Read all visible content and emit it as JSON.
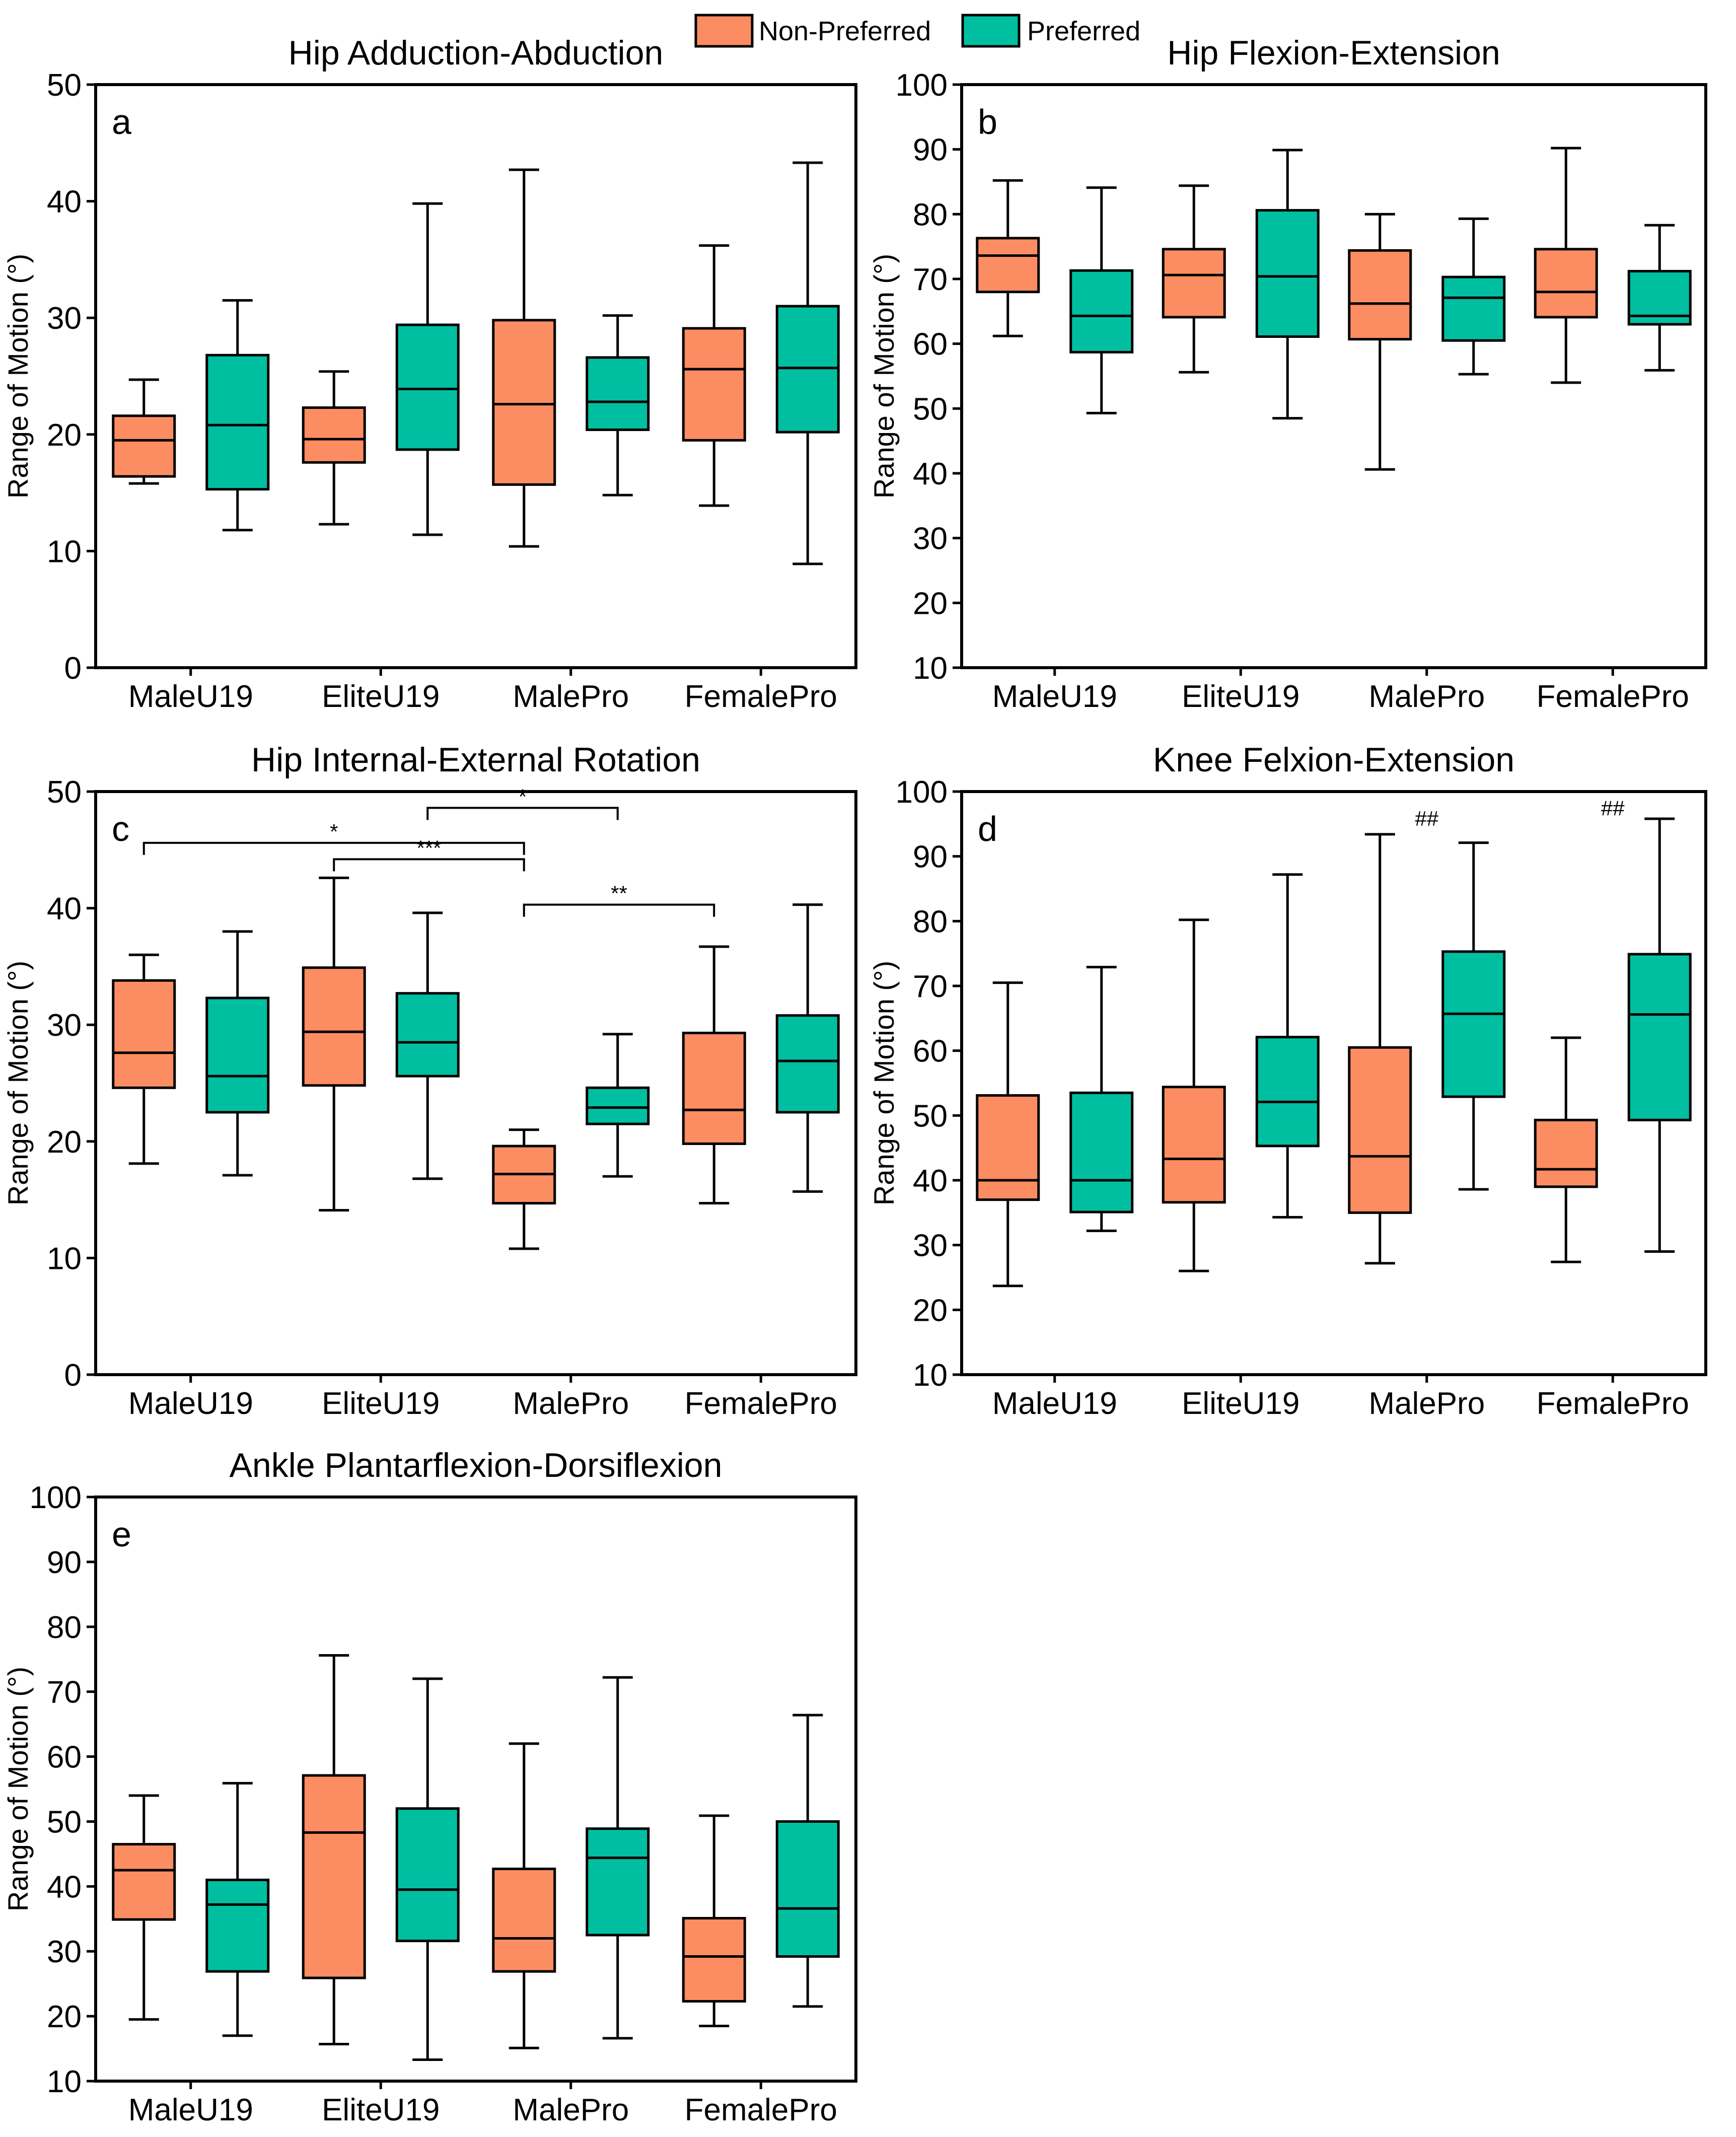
{
  "legend": {
    "items": [
      {
        "label": "Non-Preferred",
        "color": "#FC8D62"
      },
      {
        "label": "Preferred",
        "color": "#00BFA1"
      }
    ]
  },
  "chart_data": [
    {
      "type": "box",
      "panel": "a",
      "title": "Hip Adduction-Abduction",
      "ylabel": "Range of Motion (°)",
      "ylim": [
        0,
        50
      ],
      "yticks": [
        0,
        10,
        20,
        30,
        40,
        50
      ],
      "categories": [
        "MaleU19",
        "EliteU19",
        "MalePro",
        "FemalePro"
      ],
      "series": [
        {
          "name": "Non-Preferred",
          "color": "#FC8D62",
          "boxes": [
            {
              "min": 15.8,
              "q1": 16.4,
              "median": 19.5,
              "q3": 21.6,
              "max": 24.7
            },
            {
              "min": 12.3,
              "q1": 17.6,
              "median": 19.6,
              "q3": 22.3,
              "max": 25.4
            },
            {
              "min": 10.4,
              "q1": 15.7,
              "median": 22.6,
              "q3": 29.8,
              "max": 42.7
            },
            {
              "min": 13.9,
              "q1": 19.5,
              "median": 25.6,
              "q3": 29.1,
              "max": 36.2
            }
          ]
        },
        {
          "name": "Preferred",
          "color": "#00BFA1",
          "boxes": [
            {
              "min": 11.8,
              "q1": 15.3,
              "median": 20.8,
              "q3": 26.8,
              "max": 31.5
            },
            {
              "min": 11.4,
              "q1": 18.7,
              "median": 23.9,
              "q3": 29.4,
              "max": 39.8
            },
            {
              "min": 14.8,
              "q1": 20.4,
              "median": 22.8,
              "q3": 26.6,
              "max": 30.2
            },
            {
              "min": 8.9,
              "q1": 20.2,
              "median": 25.7,
              "q3": 31.0,
              "max": 43.3
            }
          ]
        }
      ],
      "annotations": []
    },
    {
      "type": "box",
      "panel": "b",
      "title": "Hip Flexion-Extension",
      "ylabel": "Range of Motion (°)",
      "ylim": [
        10,
        100
      ],
      "yticks": [
        10,
        20,
        30,
        40,
        50,
        60,
        70,
        80,
        90,
        100
      ],
      "categories": [
        "MaleU19",
        "EliteU19",
        "MalePro",
        "FemalePro"
      ],
      "series": [
        {
          "name": "Non-Preferred",
          "color": "#FC8D62",
          "boxes": [
            {
              "min": 61.2,
              "q1": 68.0,
              "median": 73.6,
              "q3": 76.3,
              "max": 85.2
            },
            {
              "min": 55.6,
              "q1": 64.1,
              "median": 70.6,
              "q3": 74.6,
              "max": 84.4
            },
            {
              "min": 40.6,
              "q1": 60.7,
              "median": 66.2,
              "q3": 74.4,
              "max": 80.0
            },
            {
              "min": 54.0,
              "q1": 64.1,
              "median": 68.0,
              "q3": 74.6,
              "max": 90.2
            }
          ]
        },
        {
          "name": "Preferred",
          "color": "#00BFA1",
          "boxes": [
            {
              "min": 49.3,
              "q1": 58.7,
              "median": 64.3,
              "q3": 71.3,
              "max": 84.1
            },
            {
              "min": 48.5,
              "q1": 61.1,
              "median": 70.4,
              "q3": 80.6,
              "max": 89.9
            },
            {
              "min": 55.3,
              "q1": 60.5,
              "median": 67.1,
              "q3": 70.3,
              "max": 79.3
            },
            {
              "min": 55.9,
              "q1": 63.0,
              "median": 64.3,
              "q3": 71.2,
              "max": 78.3
            }
          ]
        }
      ],
      "annotations": []
    },
    {
      "type": "box",
      "panel": "c",
      "title": "Hip Internal-External Rotation",
      "ylabel": "Range of Motion (°)",
      "ylim": [
        0,
        50
      ],
      "yticks": [
        0,
        10,
        20,
        30,
        40,
        50
      ],
      "categories": [
        "MaleU19",
        "EliteU19",
        "MalePro",
        "FemalePro"
      ],
      "series": [
        {
          "name": "Non-Preferred",
          "color": "#FC8D62",
          "boxes": [
            {
              "min": 18.1,
              "q1": 24.6,
              "median": 27.6,
              "q3": 33.8,
              "max": 36.0
            },
            {
              "min": 14.1,
              "q1": 24.8,
              "median": 29.4,
              "q3": 34.9,
              "max": 42.6
            },
            {
              "min": 10.8,
              "q1": 14.7,
              "median": 17.2,
              "q3": 19.6,
              "max": 21.0
            },
            {
              "min": 14.7,
              "q1": 19.8,
              "median": 22.7,
              "q3": 29.3,
              "max": 36.7
            }
          ]
        },
        {
          "name": "Preferred",
          "color": "#00BFA1",
          "boxes": [
            {
              "min": 17.1,
              "q1": 22.5,
              "median": 25.6,
              "q3": 32.3,
              "max": 38.0
            },
            {
              "min": 16.8,
              "q1": 25.6,
              "median": 28.5,
              "q3": 32.7,
              "max": 39.6
            },
            {
              "min": 17.0,
              "q1": 21.5,
              "median": 22.9,
              "q3": 24.6,
              "max": 29.2
            },
            {
              "min": 15.7,
              "q1": 22.5,
              "median": 26.9,
              "q3": 30.8,
              "max": 40.3
            }
          ]
        }
      ],
      "annotations": [
        {
          "label": "*",
          "from": [
            "EliteU19",
            "Preferred"
          ],
          "to": [
            "MalePro",
            "Preferred"
          ],
          "y": 48.6
        },
        {
          "label": "*",
          "from": [
            "MaleU19",
            "Non-Preferred"
          ],
          "to": [
            "MalePro",
            "Non-Preferred"
          ],
          "y": 45.6
        },
        {
          "label": "***",
          "from": [
            "EliteU19",
            "Non-Preferred"
          ],
          "to": [
            "MalePro",
            "Non-Preferred"
          ],
          "y": 44.2
        },
        {
          "label": "**",
          "from": [
            "MalePro",
            "Non-Preferred"
          ],
          "to": [
            "FemalePro",
            "Non-Preferred"
          ],
          "y": 40.3
        }
      ]
    },
    {
      "type": "box",
      "panel": "d",
      "title": "Knee Felxion-Extension",
      "ylabel": "Range of Motion (°)",
      "ylim": [
        10,
        100
      ],
      "yticks": [
        10,
        20,
        30,
        40,
        50,
        60,
        70,
        80,
        90,
        100
      ],
      "categories": [
        "MaleU19",
        "EliteU19",
        "MalePro",
        "FemalePro"
      ],
      "series": [
        {
          "name": "Non-Preferred",
          "color": "#FC8D62",
          "boxes": [
            {
              "min": 23.7,
              "q1": 37.0,
              "median": 40.0,
              "q3": 53.1,
              "max": 70.5
            },
            {
              "min": 26.0,
              "q1": 36.6,
              "median": 43.3,
              "q3": 54.4,
              "max": 80.2
            },
            {
              "min": 27.2,
              "q1": 35.0,
              "median": 43.7,
              "q3": 60.5,
              "max": 93.4
            },
            {
              "min": 27.4,
              "q1": 39.0,
              "median": 41.7,
              "q3": 49.3,
              "max": 62.0
            }
          ]
        },
        {
          "name": "Preferred",
          "color": "#00BFA1",
          "boxes": [
            {
              "min": 32.2,
              "q1": 35.1,
              "median": 40.0,
              "q3": 53.5,
              "max": 72.9
            },
            {
              "min": 34.3,
              "q1": 45.3,
              "median": 52.1,
              "q3": 62.1,
              "max": 87.2
            },
            {
              "min": 38.6,
              "q1": 52.9,
              "median": 65.7,
              "q3": 75.3,
              "max": 92.1
            },
            {
              "min": 29.0,
              "q1": 49.3,
              "median": 65.6,
              "q3": 74.9,
              "max": 95.8
            }
          ]
        }
      ],
      "annotations": [
        {
          "label": "##",
          "category": "MalePro",
          "y": 94.7
        },
        {
          "label": "##",
          "category": "FemalePro",
          "y": 96.3
        }
      ]
    },
    {
      "type": "box",
      "panel": "e",
      "title": "Ankle Plantarflexion-Dorsiflexion",
      "ylabel": "Range of Motion (°)",
      "ylim": [
        10,
        100
      ],
      "yticks": [
        10,
        20,
        30,
        40,
        50,
        60,
        70,
        80,
        90,
        100
      ],
      "categories": [
        "MaleU19",
        "EliteU19",
        "MalePro",
        "FemalePro"
      ],
      "series": [
        {
          "name": "Non-Preferred",
          "color": "#FC8D62",
          "boxes": [
            {
              "min": 19.5,
              "q1": 34.9,
              "median": 42.5,
              "q3": 46.5,
              "max": 54.0
            },
            {
              "min": 15.7,
              "q1": 25.9,
              "median": 48.3,
              "q3": 57.1,
              "max": 75.6
            },
            {
              "min": 15.1,
              "q1": 26.9,
              "median": 32.0,
              "q3": 42.7,
              "max": 62.0
            },
            {
              "min": 18.5,
              "q1": 22.3,
              "median": 29.2,
              "q3": 35.1,
              "max": 50.9
            }
          ]
        },
        {
          "name": "Preferred",
          "color": "#00BFA1",
          "boxes": [
            {
              "min": 17.0,
              "q1": 26.9,
              "median": 37.2,
              "q3": 41.0,
              "max": 55.9
            },
            {
              "min": 13.3,
              "q1": 31.6,
              "median": 39.5,
              "q3": 52.0,
              "max": 72.0
            },
            {
              "min": 16.6,
              "q1": 32.5,
              "median": 44.4,
              "q3": 48.9,
              "max": 72.2
            },
            {
              "min": 21.5,
              "q1": 29.2,
              "median": 36.6,
              "q3": 50.0,
              "max": 66.4
            }
          ]
        }
      ],
      "annotations": []
    }
  ]
}
